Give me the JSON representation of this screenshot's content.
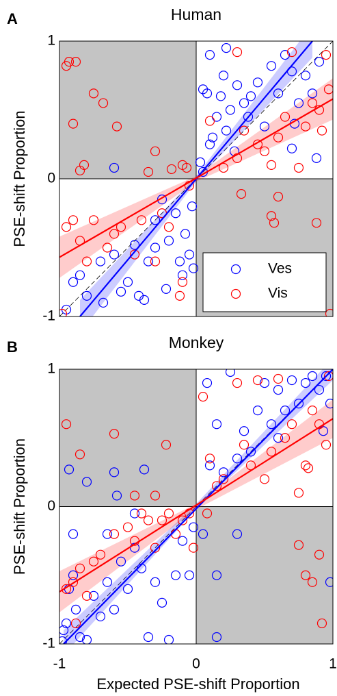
{
  "chart_data": [
    {
      "type": "scatter",
      "panel_label": "A",
      "title": "Human",
      "ylabel": "PSE-shift Proportion",
      "xlim": [
        -1,
        1
      ],
      "ylim": [
        -1,
        1
      ],
      "yticks": [
        -1,
        0,
        1
      ],
      "legend": "lower right",
      "shaded_quadrants": true,
      "identity_line": true,
      "series": [
        {
          "name": "Ves",
          "color": "#0000ff",
          "x": [
            0.05,
            0.08,
            0.1,
            0.12,
            0.15,
            0.18,
            0.2,
            0.22,
            0.25,
            0.28,
            0.3,
            0.35,
            0.38,
            0.4,
            0.45,
            0.5,
            0.55,
            0.6,
            0.65,
            0.7,
            0.72,
            0.75,
            0.8,
            0.85,
            0.88,
            0.9,
            0.22,
            0.1,
            0.05,
            0.03,
            0.7,
            -0.95,
            -0.9,
            -0.85,
            -0.8,
            -0.7,
            -0.68,
            -0.6,
            -0.55,
            -0.5,
            -0.45,
            -0.42,
            -0.38,
            -0.35,
            -0.3,
            -0.25,
            -0.22,
            -0.2,
            -0.15,
            -0.12,
            -0.1,
            -0.08,
            -0.05,
            -0.03,
            -0.02,
            -0.3,
            -0.6
          ],
          "y": [
            0.65,
            0.62,
            0.25,
            0.3,
            0.45,
            0.6,
            0.75,
            0.35,
            0.5,
            0.2,
            0.68,
            0.55,
            0.45,
            0.6,
            0.7,
            0.38,
            0.82,
            0.62,
            0.9,
            0.78,
            0.4,
            0.55,
            0.75,
            0.62,
            0.15,
            0.85,
            0.95,
            0.9,
            0.05,
            0.12,
            0.22,
            -0.95,
            -0.75,
            -0.7,
            -0.85,
            -0.6,
            -0.9,
            -0.55,
            -0.82,
            -0.75,
            -0.48,
            -0.85,
            -0.88,
            -0.6,
            -0.3,
            -0.15,
            -0.8,
            -0.45,
            -0.25,
            -0.6,
            -0.7,
            -0.4,
            -0.55,
            -0.2,
            -0.65,
            -0.5,
            0.08
          ],
          "fit": {
            "x": [
              -0.85,
              0.85
            ],
            "y": [
              -1,
              1
            ]
          },
          "band": {
            "x": [
              -0.85,
              0,
              0.85
            ],
            "lower": [
              -1.12,
              -0.02,
              0.88
            ],
            "upper": [
              -0.88,
              0.02,
              1.12
            ]
          }
        },
        {
          "name": "Vis",
          "color": "#ff0000",
          "x": [
            -0.95,
            -0.93,
            -0.88,
            -0.9,
            -0.85,
            -0.82,
            -0.75,
            -0.68,
            -0.58,
            -0.3,
            -0.35,
            -0.18,
            -0.1,
            -0.07,
            -0.98,
            -0.95,
            -0.9,
            -0.85,
            -0.8,
            -0.75,
            -0.65,
            -0.6,
            -0.55,
            -0.45,
            -0.4,
            -0.3,
            -0.25,
            -0.2,
            -0.12,
            -0.1,
            -0.05,
            0.2,
            0.3,
            0.35,
            0.45,
            0.5,
            0.55,
            0.6,
            0.65,
            0.7,
            0.75,
            0.8,
            0.85,
            0.9,
            0.92,
            0.95,
            0.97,
            0.3,
            0.1,
            0.33,
            0.55,
            0.57,
            0.6,
            0.88,
            0.98
          ],
          "y": [
            0.82,
            0.85,
            0.85,
            0.4,
            0.06,
            0.1,
            0.62,
            0.55,
            0.38,
            0.2,
            0.05,
            0.07,
            0.1,
            0.08,
            -0.98,
            -0.35,
            -0.3,
            -0.45,
            -0.6,
            -0.3,
            -0.5,
            -0.4,
            -0.35,
            -0.55,
            -0.3,
            -0.6,
            -0.25,
            -0.35,
            -0.85,
            -0.75,
            -0.05,
            0.08,
            0.15,
            0.35,
            0.25,
            0.2,
            0.1,
            0.3,
            0.45,
            0.92,
            0.08,
            0.38,
            0.55,
            0.5,
            0.35,
            0.9,
            0.65,
            0.92,
            0.42,
            -0.11,
            -0.27,
            -0.32,
            -0.13,
            -0.32,
            -0.98
          ],
          "fit": {
            "x": [
              -1,
              1
            ],
            "y": [
              -0.57,
              0.58
            ]
          },
          "band": {
            "x": [
              -1,
              0,
              1
            ],
            "lower": [
              -0.72,
              -0.02,
              0.43
            ],
            "upper": [
              -0.42,
              0.02,
              0.73
            ]
          }
        }
      ]
    },
    {
      "type": "scatter",
      "panel_label": "B",
      "title": "Monkey",
      "ylabel": "PSE-shift Proportion",
      "xlabel": "Expected PSE-shift Proportion",
      "xlim": [
        -1,
        1
      ],
      "ylim": [
        -1,
        1
      ],
      "xticks": [
        -1,
        0,
        1
      ],
      "yticks": [
        -1,
        0,
        1
      ],
      "shaded_quadrants": true,
      "identity_line": true,
      "series": [
        {
          "color": "#0000ff",
          "x": [
            -0.98,
            -0.97,
            -0.95,
            -0.93,
            -0.9,
            -0.88,
            -0.85,
            -0.8,
            -0.75,
            -0.7,
            -0.65,
            -0.6,
            -0.55,
            -0.5,
            -0.45,
            -0.4,
            -0.35,
            -0.3,
            -0.25,
            -0.2,
            -0.15,
            -0.1,
            -0.05,
            -0.02,
            -0.9,
            -0.65,
            -0.93,
            -0.8,
            -0.6,
            -0.38,
            -0.58,
            -0.45,
            0.1,
            0.15,
            0.2,
            0.25,
            0.3,
            0.35,
            0.4,
            0.45,
            0.5,
            0.55,
            0.6,
            0.65,
            0.7,
            0.75,
            0.8,
            0.85,
            0.9,
            0.95,
            0.98,
            0.93,
            0.08,
            0.6,
            0.15,
            0.05,
            0.3,
            0.15,
            0.98
          ],
          "y": [
            -0.98,
            -0.9,
            -0.85,
            -0.6,
            -0.5,
            -0.75,
            -0.95,
            -0.97,
            -0.65,
            -0.8,
            -0.55,
            -0.75,
            -0.4,
            -0.6,
            -0.3,
            -0.45,
            -0.95,
            -0.55,
            -0.7,
            -0.97,
            -0.5,
            -0.25,
            -0.5,
            -0.15,
            -0.2,
            -0.2,
            0.27,
            0.18,
            0.25,
            0.27,
            0.08,
            -0.05,
            0.3,
            0.6,
            0.25,
            0.98,
            0.35,
            0.55,
            0.4,
            0.7,
            0.9,
            0.6,
            0.85,
            0.7,
            0.92,
            0.75,
            0.9,
            0.95,
            0.85,
            0.95,
            0.75,
            0.55,
            0.9,
            0.5,
            -0.5,
            -0.2,
            -0.2,
            -0.95,
            -0.55
          ],
          "fit": {
            "x": [
              -0.97,
              1
            ],
            "y": [
              -1,
              1
            ]
          },
          "band": {
            "x": [
              -0.97,
              0,
              1
            ],
            "lower": [
              -1.08,
              -0.02,
              0.92
            ],
            "upper": [
              -0.9,
              0.02,
              1.08
            ]
          }
        },
        {
          "color": "#ff0000",
          "x": [
            -0.95,
            -0.85,
            -0.6,
            -0.22,
            -0.45,
            -0.3,
            -0.95,
            -0.9,
            -0.85,
            -0.8,
            -0.75,
            -0.7,
            -0.6,
            -0.5,
            -0.45,
            -0.4,
            -0.35,
            -0.3,
            -0.25,
            -0.2,
            -0.15,
            -0.1,
            -0.05,
            -0.02,
            -0.88,
            0.05,
            0.1,
            0.15,
            0.2,
            0.3,
            0.35,
            0.4,
            0.45,
            0.5,
            0.55,
            0.6,
            0.65,
            0.7,
            0.75,
            0.8,
            0.85,
            0.9,
            0.95,
            0.97,
            0.82,
            0.75,
            0.8,
            0.85,
            0.9,
            0.92,
            0.08
          ],
          "y": [
            0.6,
            0.38,
            0.53,
            0.45,
            0.08,
            0.08,
            -0.6,
            -0.55,
            -0.45,
            -0.65,
            -0.4,
            -0.35,
            -0.2,
            -0.15,
            -0.25,
            -0.05,
            -0.1,
            -0.3,
            -0.1,
            -0.05,
            -0.2,
            -0.1,
            -0.05,
            -0.3,
            -0.85,
            0.8,
            0.35,
            0.15,
            0.2,
            0.9,
            0.45,
            0.3,
            0.92,
            0.2,
            0.4,
            0.93,
            0.5,
            0.6,
            0.1,
            0.3,
            0.7,
            0.6,
            0.45,
            0.95,
            0.28,
            -0.28,
            -0.5,
            -0.55,
            -0.35,
            -0.85,
            -0.05
          ],
          "fit": {
            "x": [
              -1,
              1
            ],
            "y": [
              -0.62,
              0.64
            ]
          },
          "band": {
            "x": [
              -1,
              0,
              1
            ],
            "lower": [
              -0.77,
              -0.02,
              0.5
            ],
            "upper": [
              -0.47,
              0.02,
              0.78
            ]
          }
        }
      ]
    }
  ]
}
